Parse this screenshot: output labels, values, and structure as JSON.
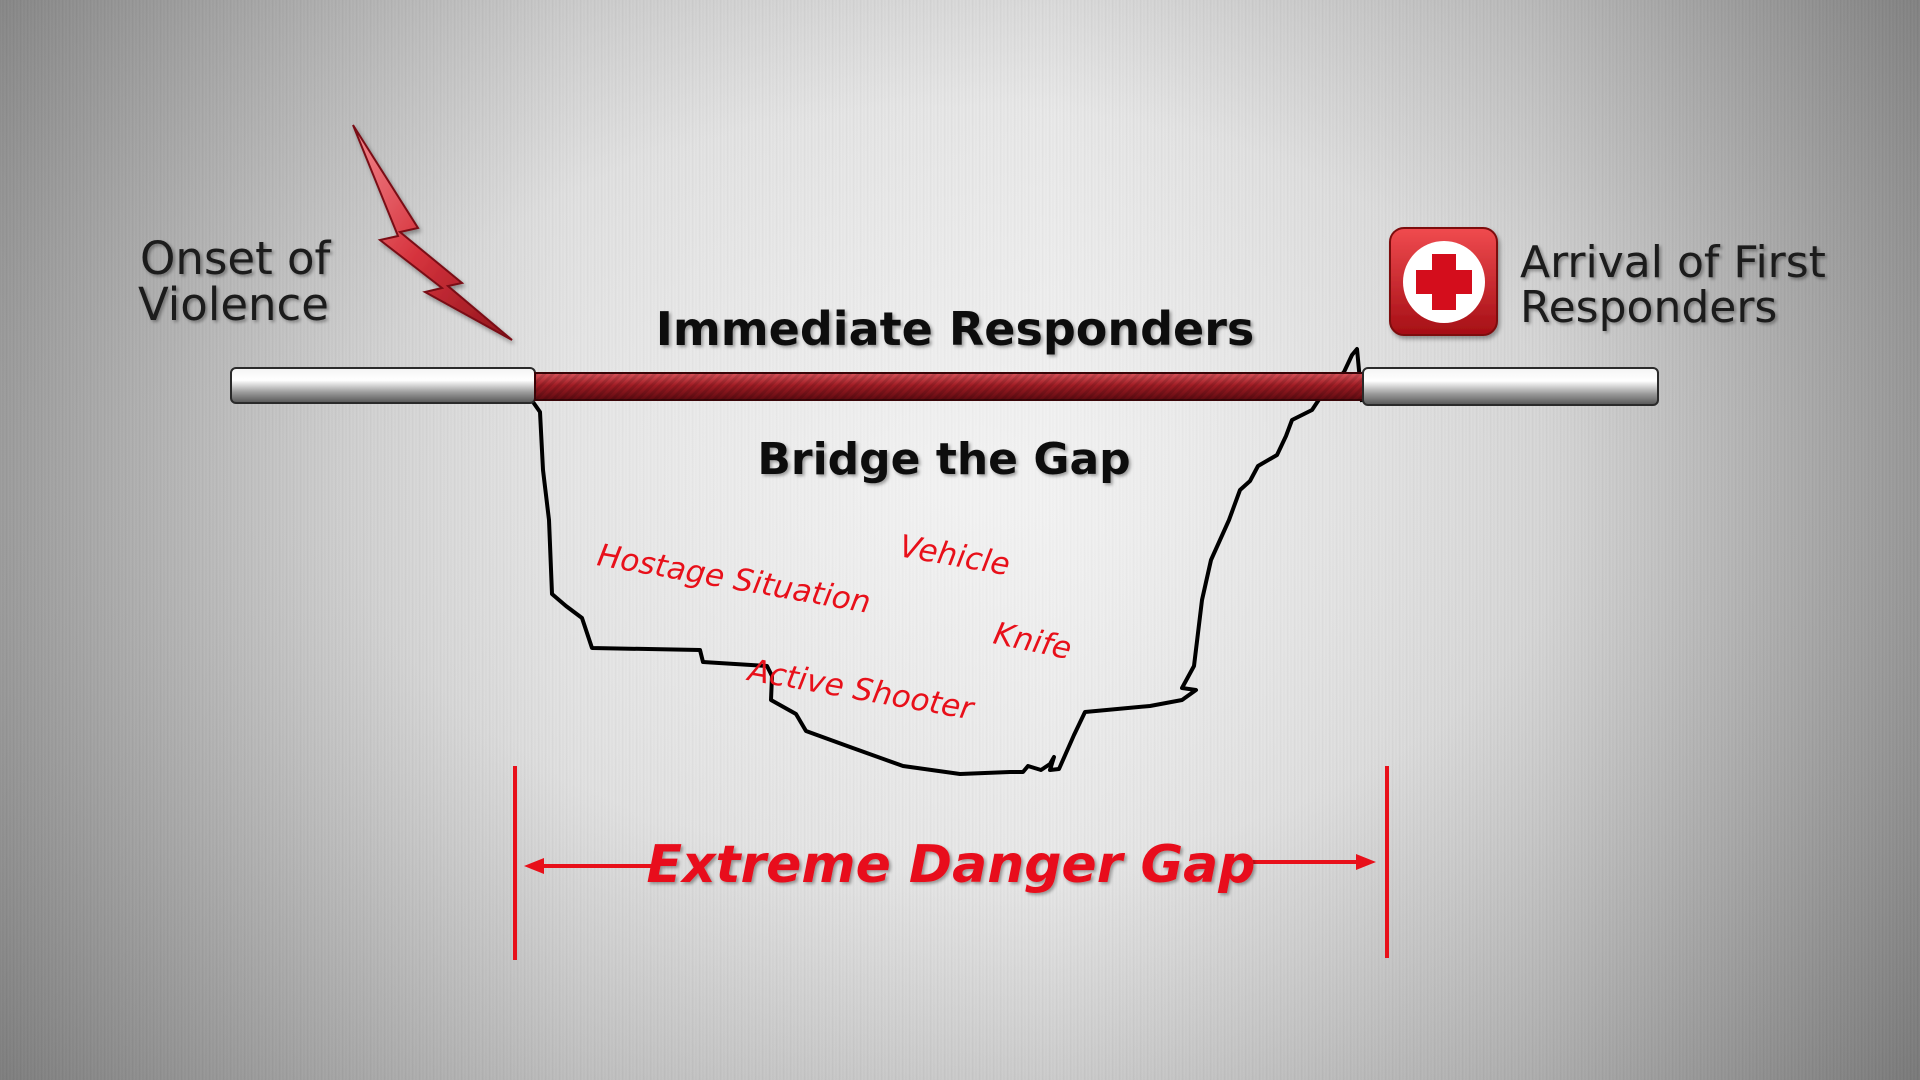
{
  "labels": {
    "onset_line1": "Onset of",
    "onset_line2": "Violence",
    "arrival_line1": "Arrival of First",
    "arrival_line2": "Responders",
    "immediate_responders": "Immediate Responders",
    "bridge_the_gap": "Bridge the Gap",
    "extreme_danger_gap": "Extreme Danger Gap"
  },
  "threats": [
    "Hostage Situation",
    "Vehicle",
    "Knife",
    "Active Shooter"
  ],
  "icons": {
    "onset": "lightning-bolt-icon",
    "arrival": "first-aid-cross-icon"
  },
  "colors": {
    "accent_red": "#e8101a",
    "bridge_red": "#9e1a22",
    "text_dark": "#1a1a1a"
  }
}
